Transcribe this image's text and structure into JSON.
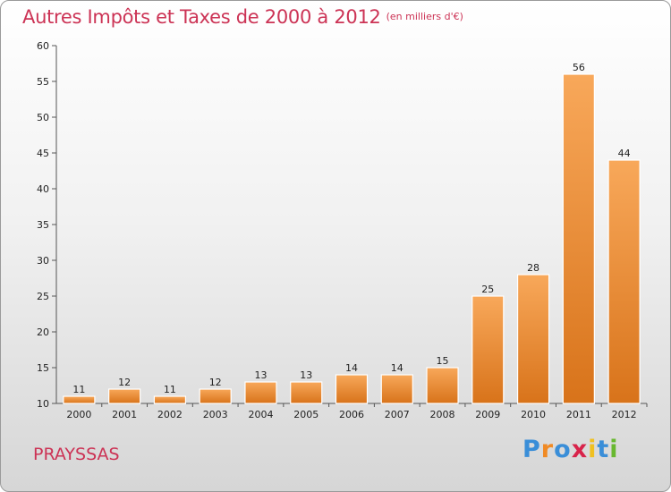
{
  "chart_data": {
    "type": "bar",
    "title": "Autres Impôts et Taxes de 2000 à 2012",
    "subtitle": "(en milliers d'€)",
    "categories": [
      "2000",
      "2001",
      "2002",
      "2003",
      "2004",
      "2005",
      "2006",
      "2007",
      "2008",
      "2009",
      "2010",
      "2011",
      "2012"
    ],
    "values": [
      11,
      12,
      11,
      12,
      13,
      13,
      14,
      14,
      15,
      25,
      28,
      56,
      44
    ],
    "ylim": [
      10,
      60
    ],
    "yticks": [
      10,
      15,
      20,
      25,
      30,
      35,
      40,
      45,
      50,
      55,
      60
    ],
    "xlabel": "",
    "ylabel": "",
    "grid": false,
    "bar_color": "#f0963a"
  },
  "footer": {
    "commune": "PRAYSSAS",
    "logo_letters": [
      "P",
      "r",
      "o",
      "x",
      "i",
      "t",
      "i"
    ],
    "logo_colors": [
      "#3a8ed8",
      "#f08a24",
      "#3a8ed8",
      "#d8234a",
      "#f0c020",
      "#3a8ed8",
      "#68b830"
    ]
  }
}
